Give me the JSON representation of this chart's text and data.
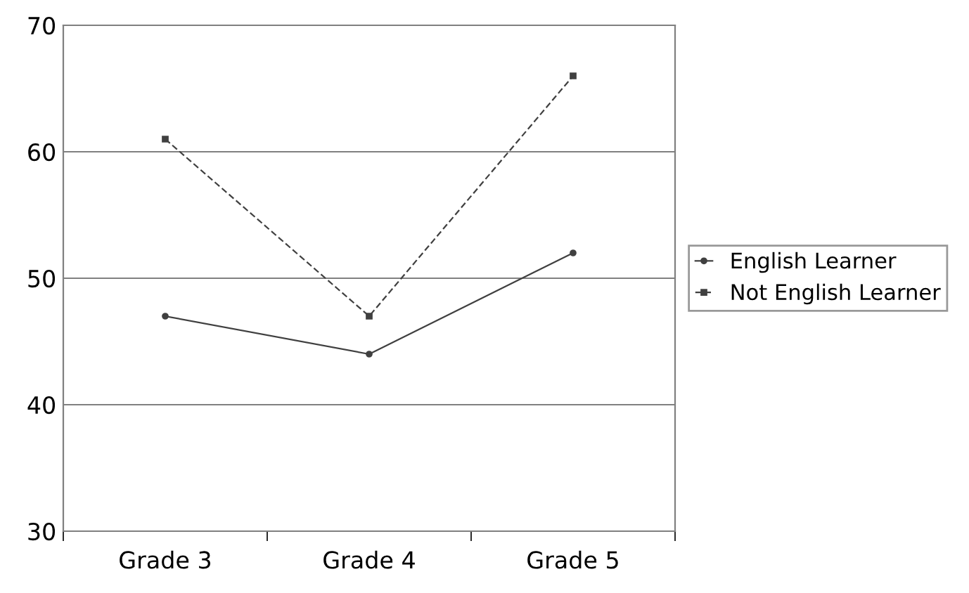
{
  "chart_data": {
    "type": "line",
    "categories": [
      "Grade 3",
      "Grade 4",
      "Grade 5"
    ],
    "series": [
      {
        "name": "English Learner",
        "color": "#404040",
        "values": [
          47,
          44,
          52
        ],
        "marker": "circle",
        "line_style": "solid"
      },
      {
        "name": "Not English Learner",
        "color": "#404040",
        "values": [
          61,
          47,
          66
        ],
        "marker": "square",
        "line_style": "dashed"
      }
    ],
    "ylim": [
      30,
      70
    ],
    "yticks": [
      30,
      40,
      50,
      60,
      70
    ],
    "grid": "y",
    "legend": "right"
  }
}
